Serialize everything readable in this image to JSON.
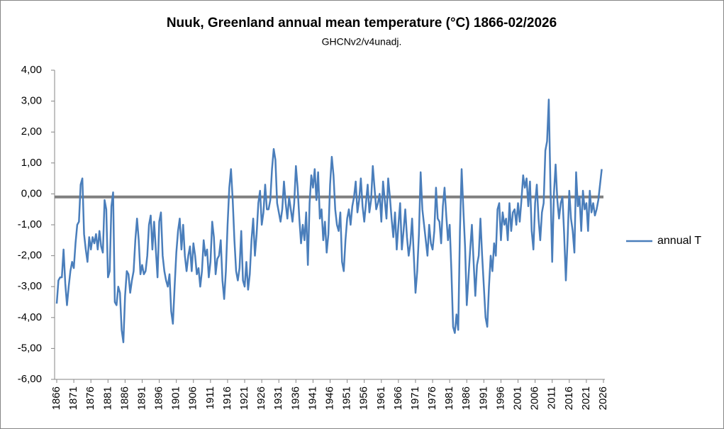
{
  "chart_data": {
    "type": "line",
    "title": "Nuuk, Greenland annual mean temperature (°C) 1866-02/2026",
    "subtitle": "GHCNv2/v4unadj.",
    "x": [
      1866,
      1866.5,
      1867,
      1867.5,
      1868,
      1868.5,
      1869,
      1869.5,
      1870,
      1870.5,
      1871,
      1871.5,
      1872,
      1872.5,
      1873,
      1873.5,
      1874,
      1874.5,
      1875,
      1875.5,
      1876,
      1876.5,
      1877,
      1877.5,
      1878,
      1878.5,
      1879,
      1879.5,
      1880,
      1880.5,
      1881,
      1881.5,
      1882,
      1882.5,
      1883,
      1883.5,
      1884,
      1884.5,
      1885,
      1885.5,
      1886,
      1886.5,
      1887,
      1887.5,
      1888,
      1888.5,
      1889,
      1889.5,
      1890,
      1890.5,
      1891,
      1891.5,
      1892,
      1892.5,
      1893,
      1893.5,
      1894,
      1894.5,
      1895,
      1895.5,
      1896,
      1896.5,
      1897,
      1897.5,
      1898,
      1898.5,
      1899,
      1899.5,
      1900,
      1900.5,
      1901,
      1901.5,
      1902,
      1902.5,
      1903,
      1903.5,
      1904,
      1904.5,
      1905,
      1905.5,
      1906,
      1906.5,
      1907,
      1907.5,
      1908,
      1908.5,
      1909,
      1909.5,
      1910,
      1910.5,
      1911,
      1911.5,
      1912,
      1912.5,
      1913,
      1913.5,
      1914,
      1914.5,
      1915,
      1915.5,
      1916,
      1916.5,
      1917,
      1917.5,
      1918,
      1918.5,
      1919,
      1919.5,
      1920,
      1920.5,
      1921,
      1921.5,
      1922,
      1922.5,
      1923,
      1923.5,
      1924,
      1924.5,
      1925,
      1925.5,
      1926,
      1926.5,
      1927,
      1927.5,
      1928,
      1928.5,
      1929,
      1929.5,
      1930,
      1930.5,
      1931,
      1931.5,
      1932,
      1932.5,
      1933,
      1933.5,
      1934,
      1934.5,
      1935,
      1935.5,
      1936,
      1936.5,
      1937,
      1937.5,
      1938,
      1938.5,
      1939,
      1939.5,
      1940,
      1940.5,
      1941,
      1941.5,
      1942,
      1942.5,
      1943,
      1943.5,
      1944,
      1944.5,
      1945,
      1945.5,
      1946,
      1946.5,
      1947,
      1947.5,
      1948,
      1948.5,
      1949,
      1949.5,
      1950,
      1950.5,
      1951,
      1951.5,
      1952,
      1952.5,
      1953,
      1953.5,
      1954,
      1954.5,
      1955,
      1955.5,
      1956,
      1956.5,
      1957,
      1957.5,
      1958,
      1958.5,
      1959,
      1959.5,
      1960,
      1960.5,
      1961,
      1961.5,
      1962,
      1962.5,
      1963,
      1963.5,
      1964,
      1964.5,
      1965,
      1965.5,
      1966,
      1966.5,
      1967,
      1967.5,
      1968,
      1968.5,
      1969,
      1969.5,
      1970,
      1970.5,
      1971,
      1971.5,
      1972,
      1972.5,
      1973,
      1973.5,
      1974,
      1974.5,
      1975,
      1975.5,
      1976,
      1976.5,
      1977,
      1977.5,
      1978,
      1978.5,
      1979,
      1979.5,
      1980,
      1980.5,
      1981,
      1981.5,
      1982,
      1982.5,
      1983,
      1983.5,
      1984,
      1984.5,
      1985,
      1985.5,
      1986,
      1986.5,
      1987,
      1987.5,
      1988,
      1988.5,
      1989,
      1989.5,
      1990,
      1990.5,
      1991,
      1991.5,
      1992,
      1992.5,
      1993,
      1993.5,
      1994,
      1994.5,
      1995,
      1995.5,
      1996,
      1996.5,
      1997,
      1997.5,
      1998,
      1998.5,
      1999,
      1999.5,
      2000,
      2000.5,
      2001,
      2001.5,
      2002,
      2002.5,
      2003,
      2003.5,
      2004,
      2004.5,
      2005,
      2005.5,
      2006,
      2006.5,
      2007,
      2007.5,
      2008,
      2008.5,
      2009,
      2009.5,
      2010,
      2010.5,
      2011,
      2011.5,
      2012,
      2012.5,
      2013,
      2013.5,
      2014,
      2014.5,
      2015,
      2015.5,
      2016,
      2016.5,
      2017,
      2017.5,
      2018,
      2018.5,
      2019,
      2019.5,
      2020,
      2020.5,
      2021,
      2021.5,
      2022,
      2022.5,
      2023,
      2023.5,
      2024,
      2024.5,
      2025,
      2025.5
    ],
    "series": [
      {
        "name": "annual T",
        "color": "#4a7ebb",
        "values": [
          -3.55,
          -2.8,
          -2.7,
          -2.7,
          -1.8,
          -2.9,
          -3.6,
          -3.0,
          -2.5,
          -2.2,
          -2.4,
          -1.6,
          -1.0,
          -0.9,
          0.3,
          0.5,
          -1.3,
          -1.8,
          -2.2,
          -1.4,
          -1.8,
          -1.4,
          -1.6,
          -1.3,
          -1.8,
          -1.2,
          -1.7,
          -1.9,
          -0.2,
          -0.5,
          -2.7,
          -2.5,
          -0.4,
          0.05,
          -3.5,
          -3.6,
          -3.0,
          -3.2,
          -4.4,
          -4.8,
          -3.3,
          -2.5,
          -2.6,
          -3.2,
          -2.8,
          -2.5,
          -1.5,
          -0.8,
          -1.5,
          -2.6,
          -2.3,
          -2.6,
          -2.5,
          -2.0,
          -1.0,
          -0.7,
          -1.8,
          -0.9,
          -1.8,
          -2.7,
          -0.9,
          -0.6,
          -2.0,
          -2.5,
          -2.8,
          -3.0,
          -2.6,
          -3.8,
          -4.2,
          -3.0,
          -1.9,
          -1.2,
          -0.8,
          -1.8,
          -1.0,
          -2.0,
          -2.5,
          -2.0,
          -1.7,
          -2.5,
          -1.6,
          -2.0,
          -2.6,
          -2.4,
          -3.0,
          -2.5,
          -1.5,
          -2.0,
          -1.8,
          -2.7,
          -2.2,
          -0.9,
          -1.4,
          -2.6,
          -2.1,
          -2.0,
          -1.5,
          -2.8,
          -3.4,
          -2.5,
          -1.0,
          0.2,
          0.8,
          -0.2,
          -1.5,
          -2.5,
          -2.8,
          -2.4,
          -1.2,
          -2.8,
          -3.0,
          -2.2,
          -3.1,
          -2.6,
          -1.5,
          -0.8,
          -2.0,
          -1.3,
          -0.3,
          0.1,
          -1.0,
          -0.6,
          0.3,
          -0.5,
          -0.5,
          -0.2,
          0.8,
          1.45,
          1.1,
          -0.3,
          -0.6,
          -0.9,
          -0.5,
          0.4,
          -0.3,
          -0.8,
          -0.1,
          -0.5,
          -0.9,
          -0.3,
          0.9,
          0.2,
          -0.8,
          -1.6,
          -1.0,
          -1.5,
          -0.6,
          -2.3,
          -0.3,
          0.6,
          0.2,
          0.8,
          -0.2,
          0.7,
          -0.8,
          -0.5,
          -1.5,
          -0.9,
          -1.9,
          -1.3,
          0.3,
          1.2,
          0.6,
          -0.5,
          -1.0,
          -1.2,
          -0.6,
          -2.2,
          -2.5,
          -1.5,
          -0.8,
          -0.5,
          -1.0,
          -0.4,
          -0.1,
          0.4,
          -0.6,
          -0.2,
          0.5,
          -0.4,
          -0.9,
          -0.3,
          0.3,
          -0.6,
          -0.2,
          0.9,
          0.2,
          -0.5,
          -0.3,
          0.0,
          -0.9,
          0.4,
          -0.2,
          -0.8,
          0.5,
          -0.1,
          -0.8,
          -1.4,
          -0.6,
          -1.8,
          -1.0,
          -0.3,
          -1.8,
          -1.2,
          -0.5,
          -1.4,
          -2.0,
          -1.6,
          -0.8,
          -2.0,
          -3.2,
          -2.5,
          -1.3,
          0.7,
          -0.5,
          -1.0,
          -1.5,
          -2.0,
          -1.0,
          -1.6,
          -1.8,
          -1.2,
          0.2,
          -0.8,
          -0.9,
          -1.6,
          -0.4,
          0.2,
          -0.7,
          -1.5,
          -1.0,
          -2.5,
          -4.3,
          -4.5,
          -3.9,
          -4.4,
          -1.2,
          0.8,
          -0.5,
          -1.7,
          -3.6,
          -2.7,
          -1.8,
          -1.0,
          -2.2,
          -3.3,
          -2.3,
          -2.0,
          -0.8,
          -2.0,
          -3.0,
          -4.0,
          -4.3,
          -3.0,
          -2.0,
          -2.5,
          -1.6,
          -2.0,
          -0.5,
          -0.3,
          -1.5,
          -0.6,
          -1.0,
          -0.8,
          -1.5,
          -0.3,
          -1.2,
          -0.6,
          -0.5,
          -1.0,
          -0.3,
          -0.9,
          -0.2,
          0.6,
          0.2,
          0.5,
          -0.4,
          0.4,
          -1.2,
          -1.8,
          -0.3,
          0.3,
          -0.8,
          -1.5,
          -0.6,
          -0.3,
          1.4,
          1.7,
          3.05,
          0.2,
          -2.2,
          0.0,
          0.95,
          -0.2,
          -0.8,
          -0.3,
          -0.1,
          -1.3,
          -2.8,
          -1.5,
          0.1,
          -0.8,
          -1.2,
          -1.9,
          0.7,
          -0.4,
          -0.1,
          -1.2,
          0.1,
          -0.5,
          -0.3,
          -1.2,
          0.1,
          -0.6,
          -0.3,
          -0.7,
          -0.5,
          -0.2,
          0.3,
          0.8
        ]
      }
    ],
    "reference_line": {
      "value": -0.1,
      "color": "#808080"
    },
    "xlim": [
      1866,
      2026
    ],
    "xticks": [
      1866,
      1871,
      1876,
      1881,
      1886,
      1891,
      1896,
      1901,
      1906,
      1911,
      1916,
      1921,
      1926,
      1931,
      1936,
      1941,
      1946,
      1951,
      1956,
      1961,
      1966,
      1971,
      1976,
      1981,
      1986,
      1991,
      1996,
      2001,
      2006,
      2011,
      2016,
      2021,
      2026
    ],
    "ylim": [
      -6,
      4
    ],
    "yticks": [
      {
        "value": -6,
        "label": "-6,00"
      },
      {
        "value": -5,
        "label": "-5,00"
      },
      {
        "value": -4,
        "label": "-4,00"
      },
      {
        "value": -3,
        "label": "-3,00"
      },
      {
        "value": -2,
        "label": "-2,00"
      },
      {
        "value": -1,
        "label": "-1,00"
      },
      {
        "value": 0,
        "label": "0,00"
      },
      {
        "value": 1,
        "label": "1,00"
      },
      {
        "value": 2,
        "label": "2,00"
      },
      {
        "value": 3,
        "label": "3,00"
      },
      {
        "value": 4,
        "label": "4,00"
      }
    ],
    "grid": false,
    "legend": "right"
  }
}
